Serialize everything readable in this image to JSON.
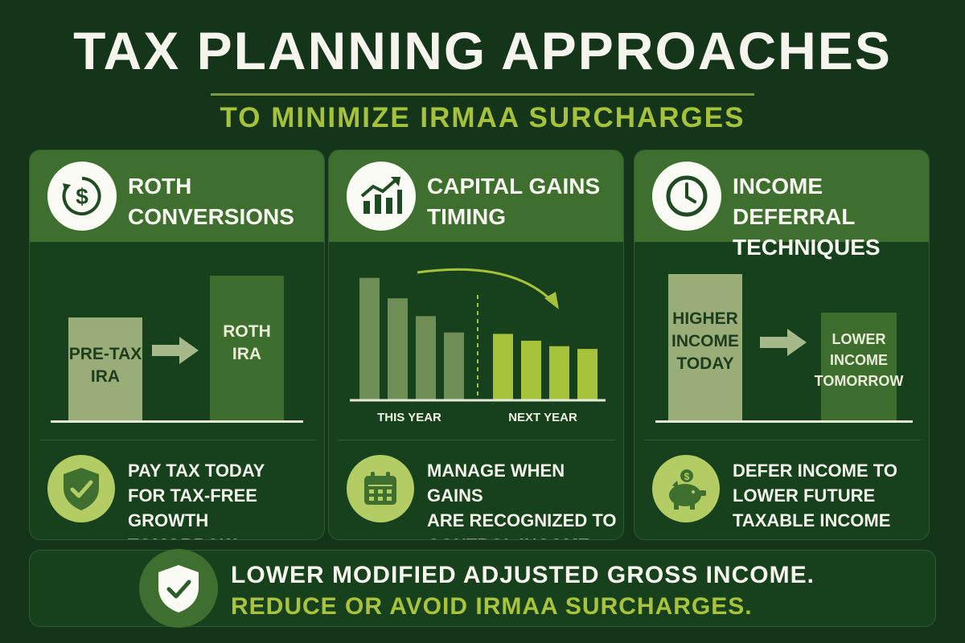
{
  "header": {
    "title": "TAX PLANNING APPROACHES",
    "subtitle": "TO MINIMIZE IRMAA SURCHARGES"
  },
  "colors": {
    "background": "#143519",
    "card_header": "#3f6f2f",
    "accent_lime": "#a6c23b",
    "light_bar": "#98ad78",
    "dark_bar": "#3e6e2d"
  },
  "cards": [
    {
      "title": "ROTH\nCONVERSIONS",
      "icon": "dollar-cycle-icon",
      "diagram": {
        "from_label": "PRE-TAX\nIRA",
        "to_label": "ROTH\nIRA"
      },
      "footer_icon": "shield-check-icon",
      "footer_text": "PAY TAX TODAY\nFOR TAX-FREE\nGROWTH TOMORROW"
    },
    {
      "title": "CAPITAL GAINS\nTIMING",
      "icon": "growth-chart-icon",
      "diagram": {
        "left_axis_label": "THIS YEAR",
        "right_axis_label": "NEXT YEAR",
        "this_year_levels": [
          0.89,
          0.74,
          0.61,
          0.49
        ],
        "next_year_levels": [
          0.48,
          0.43,
          0.39,
          0.37
        ]
      },
      "footer_icon": "calendar-icon",
      "footer_text": "MANAGE WHEN GAINS\nARE RECOGNIZED TO\nCONTROL INCOME"
    },
    {
      "title": "INCOME DEFERRAL\nTECHNIQUES",
      "icon": "clock-icon",
      "diagram": {
        "from_label": "HIGHER\nINCOME\nTODAY",
        "to_label": "LOWER\nINCOME\nTOMORROW"
      },
      "footer_icon": "piggy-bank-icon",
      "footer_text": "DEFER INCOME TO\nLOWER FUTURE\nTAXABLE INCOME"
    }
  ],
  "banner": {
    "icon": "shield-check-icon",
    "line1": "LOWER MODIFIED ADJUSTED GROSS INCOME.",
    "line2": "REDUCE OR AVOID IRMAA SURCHARGES."
  }
}
